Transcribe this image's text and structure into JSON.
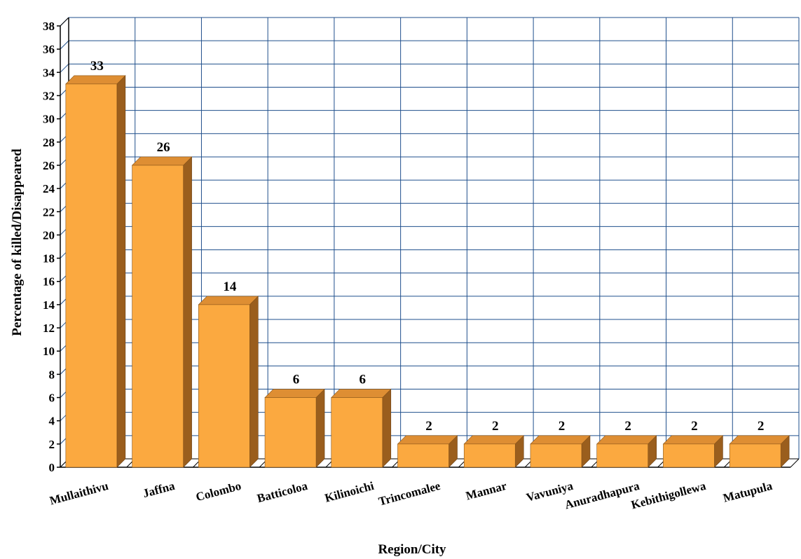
{
  "chart_data": {
    "type": "bar",
    "title": "",
    "xlabel": "Region/City",
    "ylabel": "Percentage of killed/Disappeared",
    "categories": [
      "Mullaithivu",
      "Jaffna",
      "Colombo",
      "Batticoloa",
      "Kilinoichi",
      "Trincomalee",
      "Mannar",
      "Vavuniya",
      "Anuradhapura",
      "Kebithigollewa",
      "Matupula"
    ],
    "values": [
      33,
      26,
      14,
      6,
      6,
      2,
      2,
      2,
      2,
      2,
      2
    ],
    "data_labels": [
      "33",
      "26",
      "14",
      "6",
      "6",
      "2",
      "2",
      "2",
      "2",
      "2",
      "2"
    ],
    "ylim": [
      0,
      38
    ],
    "yticks": [
      0,
      2,
      4,
      6,
      8,
      10,
      12,
      14,
      16,
      18,
      20,
      22,
      24,
      26,
      28,
      30,
      32,
      34,
      36,
      38
    ],
    "ytick_labels": [
      "0",
      "2",
      "4",
      "6",
      "8",
      "10",
      "12",
      "14",
      "16",
      "18",
      "20",
      "22",
      "24",
      "26",
      "28",
      "30",
      "32",
      "34",
      "36",
      "38"
    ],
    "grid": true,
    "style": "3d-bar",
    "colors": {
      "bar_front": "#FBA940",
      "bar_top": "#DE8E33",
      "bar_side": "#9A5E1D",
      "grid": "#1F4F8C",
      "axis": "#000000"
    }
  }
}
